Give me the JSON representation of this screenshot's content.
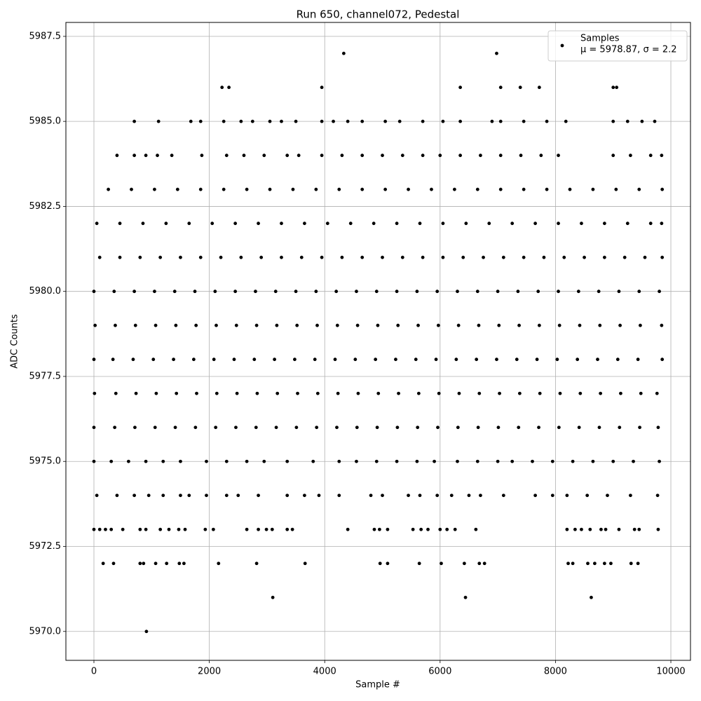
{
  "chart_data": {
    "type": "scatter",
    "title": "Run 650, channel072, Pedestal",
    "xlabel": "Sample #",
    "ylabel": "ADC Counts",
    "legend_note": "μ = 5978.87, σ = 2.2",
    "legend": "upper right",
    "grid": true,
    "xlim": [
      -486,
      10340
    ],
    "ylim": [
      5969.15,
      5987.91
    ],
    "xticks": [
      0,
      2000,
      4000,
      6000,
      8000,
      10000
    ],
    "yticks": [
      {
        "value": 5970,
        "label": "5970.0"
      },
      {
        "value": 5972.5,
        "label": "5972.5"
      },
      {
        "value": 5975,
        "label": "5975.0"
      },
      {
        "value": 5977.5,
        "label": "5977.5"
      },
      {
        "value": 5980,
        "label": "5980.0"
      },
      {
        "value": 5982.5,
        "label": "5982.5"
      },
      {
        "value": 5985,
        "label": "5985.0"
      },
      {
        "value": 5987.5,
        "label": "5987.5"
      }
    ],
    "series": [
      {
        "name": "Samples",
        "color": "#000000",
        "x": [
          4330,
          6980,
          2220,
          2340,
          3950,
          6350,
          7050,
          7390,
          7720,
          9000,
          9060,
          700,
          1120,
          1680,
          1850,
          2250,
          2550,
          2750,
          3050,
          3250,
          3500,
          3950,
          4150,
          4400,
          4650,
          5050,
          5300,
          5700,
          6050,
          6350,
          6900,
          7050,
          7450,
          7850,
          8180,
          9000,
          9250,
          9500,
          9720,
          400,
          700,
          900,
          1100,
          1350,
          1870,
          2300,
          2600,
          2950,
          3350,
          3550,
          3950,
          4300,
          4650,
          5000,
          5350,
          5700,
          6000,
          6350,
          6700,
          7050,
          7400,
          7750,
          8050,
          9000,
          9300,
          9650,
          9840,
          250,
          650,
          1050,
          1450,
          1850,
          2250,
          2650,
          3050,
          3450,
          3850,
          4250,
          4650,
          5050,
          5450,
          5850,
          6250,
          6650,
          7050,
          7450,
          7850,
          8250,
          8650,
          9050,
          9450,
          9850,
          50,
          450,
          850,
          1250,
          1650,
          2050,
          2450,
          2850,
          3250,
          3650,
          4050,
          4450,
          4850,
          5250,
          5650,
          6050,
          6450,
          6850,
          7250,
          7650,
          8050,
          8450,
          8850,
          9250,
          9650,
          9840,
          100,
          450,
          800,
          1150,
          1500,
          1850,
          2200,
          2550,
          2900,
          3250,
          3600,
          3950,
          4300,
          4650,
          5000,
          5350,
          5700,
          6050,
          6400,
          6750,
          7100,
          7450,
          7800,
          8150,
          8500,
          8850,
          9200,
          9550,
          9850,
          0,
          350,
          700,
          1050,
          1400,
          1750,
          2100,
          2450,
          2800,
          3150,
          3500,
          3850,
          4200,
          4550,
          4900,
          5250,
          5600,
          5950,
          6300,
          6650,
          7000,
          7350,
          7700,
          8050,
          8400,
          8750,
          9100,
          9450,
          9800,
          20,
          370,
          720,
          1070,
          1420,
          1770,
          2120,
          2470,
          2820,
          3170,
          3520,
          3870,
          4220,
          4570,
          4920,
          5270,
          5620,
          5970,
          6320,
          6670,
          7020,
          7370,
          7720,
          8070,
          8420,
          8770,
          9120,
          9470,
          9840,
          0,
          330,
          680,
          1030,
          1380,
          1730,
          2080,
          2430,
          2780,
          3130,
          3480,
          3830,
          4180,
          4530,
          4880,
          5230,
          5580,
          5930,
          6280,
          6630,
          6980,
          7330,
          7680,
          8030,
          8380,
          8730,
          9080,
          9430,
          9850,
          10,
          380,
          730,
          1080,
          1430,
          1780,
          2130,
          2480,
          2830,
          3180,
          3530,
          3880,
          4230,
          4580,
          4930,
          5280,
          5630,
          5980,
          6330,
          6680,
          7030,
          7380,
          7730,
          8080,
          8430,
          8780,
          9130,
          9480,
          9760,
          0,
          360,
          710,
          1060,
          1410,
          1760,
          2110,
          2460,
          2810,
          3160,
          3510,
          3860,
          4210,
          4560,
          4910,
          5260,
          5610,
          5960,
          6310,
          6660,
          7010,
          7360,
          7710,
          8060,
          8410,
          8760,
          9110,
          9460,
          9780,
          0,
          300,
          600,
          900,
          1200,
          1500,
          1950,
          2300,
          2650,
          2950,
          3350,
          3800,
          4250,
          4550,
          4900,
          5250,
          5600,
          5900,
          6300,
          6650,
          7000,
          7250,
          7600,
          7950,
          8300,
          8650,
          9000,
          9350,
          9800,
          50,
          400,
          700,
          950,
          1200,
          1500,
          1650,
          1950,
          2300,
          2500,
          2850,
          3350,
          3650,
          3900,
          4250,
          4800,
          5000,
          5450,
          5650,
          5950,
          6200,
          6500,
          6700,
          7100,
          7650,
          7950,
          8200,
          8550,
          8900,
          9300,
          9770,
          0,
          100,
          200,
          300,
          500,
          800,
          900,
          1150,
          1300,
          1470,
          1580,
          1930,
          2070,
          2650,
          2850,
          2990,
          3090,
          3350,
          3440,
          4400,
          4860,
          4950,
          5090,
          5530,
          5670,
          5790,
          6000,
          6120,
          6260,
          6620,
          8200,
          8340,
          8450,
          8600,
          8790,
          8870,
          9100,
          9370,
          9450,
          9780,
          160,
          340,
          800,
          860,
          1070,
          1260,
          1480,
          1560,
          2160,
          2820,
          3660,
          4960,
          5090,
          5640,
          6020,
          6420,
          6680,
          6770,
          8220,
          8300,
          8560,
          8680,
          8850,
          8960,
          9310,
          9430,
          3100,
          6440,
          8620,
          910
        ],
        "values": [
          5987,
          5987,
          5986,
          5986,
          5986,
          5986,
          5986,
          5986,
          5986,
          5986,
          5986,
          5985,
          5985,
          5985,
          5985,
          5985,
          5985,
          5985,
          5985,
          5985,
          5985,
          5985,
          5985,
          5985,
          5985,
          5985,
          5985,
          5985,
          5985,
          5985,
          5985,
          5985,
          5985,
          5985,
          5985,
          5985,
          5985,
          5985,
          5985,
          5984,
          5984,
          5984,
          5984,
          5984,
          5984,
          5984,
          5984,
          5984,
          5984,
          5984,
          5984,
          5984,
          5984,
          5984,
          5984,
          5984,
          5984,
          5984,
          5984,
          5984,
          5984,
          5984,
          5984,
          5984,
          5984,
          5984,
          5984,
          5983,
          5983,
          5983,
          5983,
          5983,
          5983,
          5983,
          5983,
          5983,
          5983,
          5983,
          5983,
          5983,
          5983,
          5983,
          5983,
          5983,
          5983,
          5983,
          5983,
          5983,
          5983,
          5983,
          5983,
          5983,
          5982,
          5982,
          5982,
          5982,
          5982,
          5982,
          5982,
          5982,
          5982,
          5982,
          5982,
          5982,
          5982,
          5982,
          5982,
          5982,
          5982,
          5982,
          5982,
          5982,
          5982,
          5982,
          5982,
          5982,
          5982,
          5982,
          5981,
          5981,
          5981,
          5981,
          5981,
          5981,
          5981,
          5981,
          5981,
          5981,
          5981,
          5981,
          5981,
          5981,
          5981,
          5981,
          5981,
          5981,
          5981,
          5981,
          5981,
          5981,
          5981,
          5981,
          5981,
          5981,
          5981,
          5981,
          5981,
          5980,
          5980,
          5980,
          5980,
          5980,
          5980,
          5980,
          5980,
          5980,
          5980,
          5980,
          5980,
          5980,
          5980,
          5980,
          5980,
          5980,
          5980,
          5980,
          5980,
          5980,
          5980,
          5980,
          5980,
          5980,
          5980,
          5980,
          5980,
          5980,
          5979,
          5979,
          5979,
          5979,
          5979,
          5979,
          5979,
          5979,
          5979,
          5979,
          5979,
          5979,
          5979,
          5979,
          5979,
          5979,
          5979,
          5979,
          5979,
          5979,
          5979,
          5979,
          5979,
          5979,
          5979,
          5979,
          5979,
          5979,
          5979,
          5978,
          5978,
          5978,
          5978,
          5978,
          5978,
          5978,
          5978,
          5978,
          5978,
          5978,
          5978,
          5978,
          5978,
          5978,
          5978,
          5978,
          5978,
          5978,
          5978,
          5978,
          5978,
          5978,
          5978,
          5978,
          5978,
          5978,
          5978,
          5978,
          5977,
          5977,
          5977,
          5977,
          5977,
          5977,
          5977,
          5977,
          5977,
          5977,
          5977,
          5977,
          5977,
          5977,
          5977,
          5977,
          5977,
          5977,
          5977,
          5977,
          5977,
          5977,
          5977,
          5977,
          5977,
          5977,
          5977,
          5977,
          5977,
          5976,
          5976,
          5976,
          5976,
          5976,
          5976,
          5976,
          5976,
          5976,
          5976,
          5976,
          5976,
          5976,
          5976,
          5976,
          5976,
          5976,
          5976,
          5976,
          5976,
          5976,
          5976,
          5976,
          5976,
          5976,
          5976,
          5976,
          5976,
          5976,
          5975,
          5975,
          5975,
          5975,
          5975,
          5975,
          5975,
          5975,
          5975,
          5975,
          5975,
          5975,
          5975,
          5975,
          5975,
          5975,
          5975,
          5975,
          5975,
          5975,
          5975,
          5975,
          5975,
          5975,
          5975,
          5975,
          5975,
          5975,
          5975,
          5974,
          5974,
          5974,
          5974,
          5974,
          5974,
          5974,
          5974,
          5974,
          5974,
          5974,
          5974,
          5974,
          5974,
          5974,
          5974,
          5974,
          5974,
          5974,
          5974,
          5974,
          5974,
          5974,
          5974,
          5974,
          5974,
          5974,
          5974,
          5974,
          5974,
          5974,
          5973,
          5973,
          5973,
          5973,
          5973,
          5973,
          5973,
          5973,
          5973,
          5973,
          5973,
          5973,
          5973,
          5973,
          5973,
          5973,
          5973,
          5973,
          5973,
          5973,
          5973,
          5973,
          5973,
          5973,
          5973,
          5973,
          5973,
          5973,
          5973,
          5973,
          5973,
          5973,
          5973,
          5973,
          5973,
          5973,
          5973,
          5973,
          5973,
          5973,
          5972,
          5972,
          5972,
          5972,
          5972,
          5972,
          5972,
          5972,
          5972,
          5972,
          5972,
          5972,
          5972,
          5972,
          5972,
          5972,
          5972,
          5972,
          5972,
          5972,
          5972,
          5972,
          5972,
          5972,
          5972,
          5972,
          5971,
          5971,
          5971,
          5970
        ]
      }
    ]
  }
}
